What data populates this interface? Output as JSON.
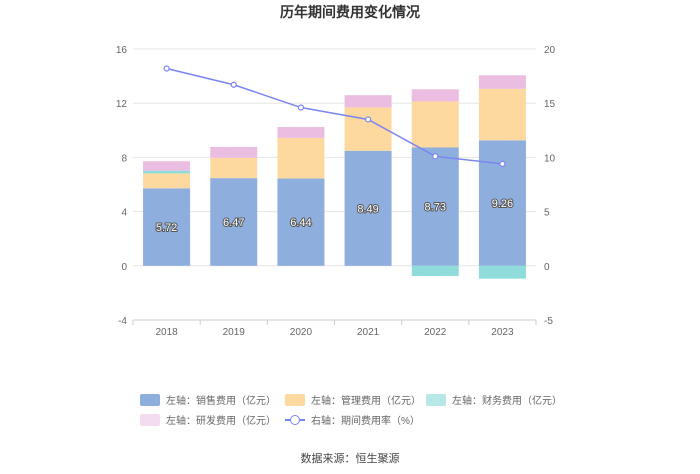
{
  "chart_data": {
    "type": "bar",
    "title": "历年期间费用变化情况",
    "categories": [
      "2018",
      "2019",
      "2020",
      "2021",
      "2022",
      "2023"
    ],
    "stacked": true,
    "series": [
      {
        "name": "左轴：销售费用（亿元）",
        "axis": "left",
        "type": "bar",
        "color": "#8eaede",
        "values": [
          5.72,
          6.47,
          6.44,
          8.49,
          8.73,
          9.26
        ],
        "labels": [
          "5.72",
          "6.47",
          "6.44",
          "8.49",
          "8.73",
          "9.26"
        ]
      },
      {
        "name": "左轴：管理费用（亿元）",
        "axis": "left",
        "type": "bar",
        "color": "#fdd9a0",
        "values": [
          1.1,
          1.5,
          3.0,
          3.2,
          3.4,
          3.8
        ]
      },
      {
        "name": "左轴：财务费用（亿元）",
        "axis": "left",
        "type": "bar",
        "color": "#8fdcda",
        "values": [
          0.2,
          0.0,
          0.0,
          0.0,
          -0.75,
          -0.95
        ]
      },
      {
        "name": "左轴：研发费用（亿元）",
        "axis": "left",
        "type": "bar",
        "color": "#ebbde0",
        "values": [
          0.7,
          0.8,
          0.8,
          0.9,
          0.9,
          1.0
        ]
      },
      {
        "name": "右轴：期间费用率（%）",
        "axis": "right",
        "type": "line",
        "color": "#7b84f0",
        "values": [
          18.2,
          16.7,
          14.6,
          13.5,
          10.1,
          9.4
        ]
      }
    ],
    "left_axis": {
      "min": -4,
      "max": 16,
      "ticks": [
        "-4",
        "0",
        "4",
        "8",
        "12",
        "16"
      ]
    },
    "right_axis": {
      "min": -5,
      "max": 20,
      "ticks": [
        "-5",
        "0",
        "5",
        "10",
        "15",
        "20"
      ]
    },
    "legend_position": "bottom",
    "grid": true
  },
  "source": "数据来源：恒生聚源"
}
